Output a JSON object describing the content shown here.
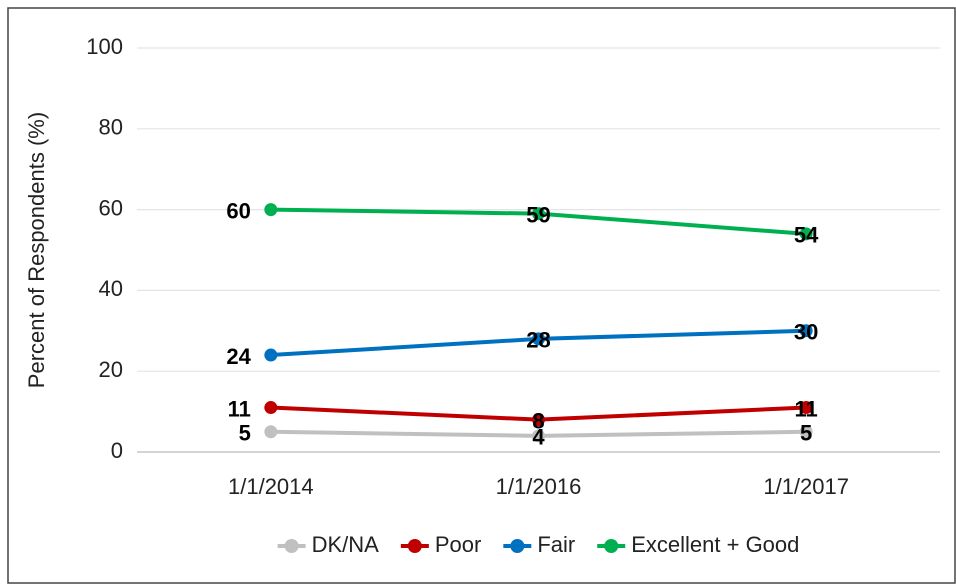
{
  "chart_data": {
    "type": "line",
    "y_label": "Percent of Respondents (%)",
    "categories": [
      "1/1/2014",
      "1/1/2016",
      "1/1/2017"
    ],
    "series": [
      {
        "name": "DK/NA",
        "color": "#c0c0c0",
        "values": [
          5,
          4,
          5
        ]
      },
      {
        "name": "Poor",
        "color": "#c00000",
        "values": [
          11,
          8,
          11
        ]
      },
      {
        "name": "Fair",
        "color": "#0070c0",
        "values": [
          24,
          28,
          30
        ]
      },
      {
        "name": "Excellent + Good",
        "color": "#00b050",
        "values": [
          60,
          59,
          54
        ]
      }
    ],
    "ylim": [
      0,
      100
    ],
    "yticks": [
      0,
      20,
      40,
      60,
      80,
      100
    ],
    "grid": true,
    "legend": "bottom"
  }
}
